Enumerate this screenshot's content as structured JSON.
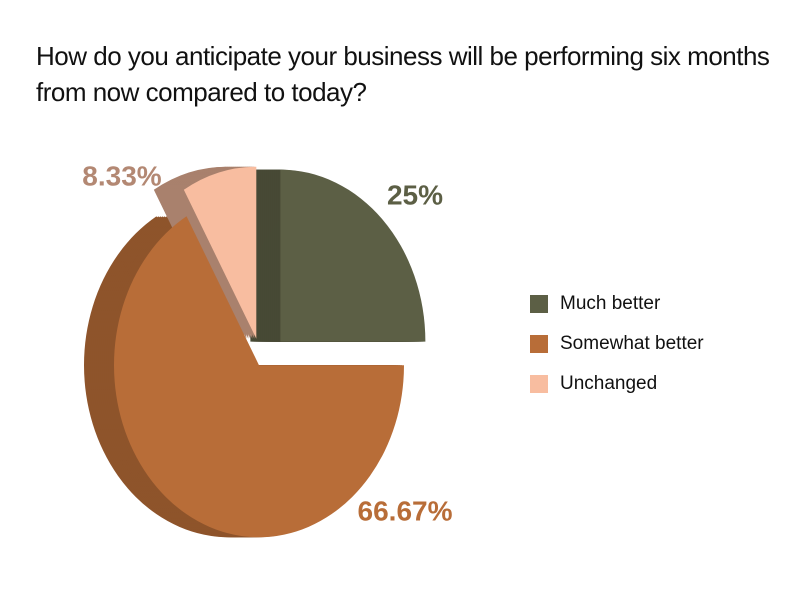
{
  "chart_data": {
    "type": "pie",
    "title": "How do you anticipate your business will be performing six months from now compared to today?",
    "categories": [
      "Much better",
      "Somewhat better",
      "Unchanged"
    ],
    "values": [
      25,
      66.67,
      8.33
    ],
    "value_labels": [
      "25%",
      "66.67%",
      "8.33%"
    ],
    "colors": [
      "#5c5f45",
      "#b86d38",
      "#f8bda0"
    ]
  }
}
